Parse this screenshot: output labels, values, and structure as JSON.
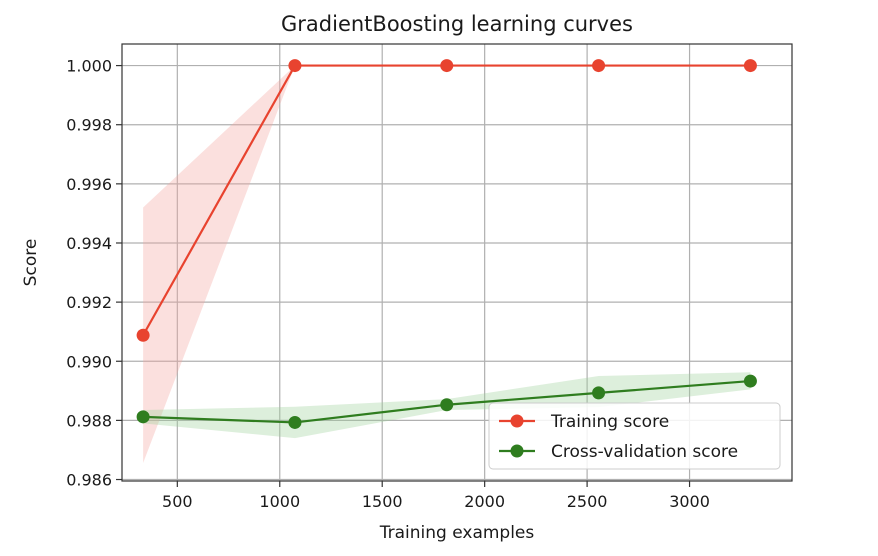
{
  "chart_data": {
    "type": "line",
    "title": "GradientBoosting learning curves",
    "xlabel": "Training examples",
    "ylabel": "Score",
    "xlim": [
      230,
      3500
    ],
    "ylim": [
      0.98595,
      1.00073
    ],
    "xticks": [
      500,
      1000,
      1500,
      2000,
      2500,
      3000
    ],
    "xtick_labels": [
      "500",
      "1000",
      "1500",
      "2000",
      "2500",
      "3000"
    ],
    "yticks": [
      0.986,
      0.988,
      0.99,
      0.992,
      0.994,
      0.996,
      0.998,
      1.0
    ],
    "ytick_labels": [
      "0.986",
      "0.988",
      "0.990",
      "0.992",
      "0.994",
      "0.996",
      "0.998",
      "1.000"
    ],
    "grid": true,
    "legend_position": "lower-right",
    "x": [
      333,
      1074,
      1815,
      2556,
      3297
    ],
    "series": [
      {
        "name": "Training score",
        "color": "#e8432f",
        "band_color": "#f4a7a0",
        "values": [
          0.99088,
          1.0,
          1.0,
          1.0,
          1.0
        ],
        "band_lower": [
          0.98656,
          1.0,
          1.0,
          1.0,
          1.0
        ],
        "band_upper": [
          0.9952,
          1.0,
          1.0,
          1.0,
          1.0
        ]
      },
      {
        "name": "Cross-validation score",
        "color": "#2f7d1f",
        "band_color": "#9fd29a",
        "values": [
          0.98812,
          0.98793,
          0.98853,
          0.98893,
          0.98933
        ],
        "band_lower": [
          0.9879,
          0.9874,
          0.98835,
          0.98845,
          0.98905
        ],
        "band_upper": [
          0.98835,
          0.98846,
          0.98872,
          0.9895,
          0.98963
        ]
      }
    ]
  }
}
